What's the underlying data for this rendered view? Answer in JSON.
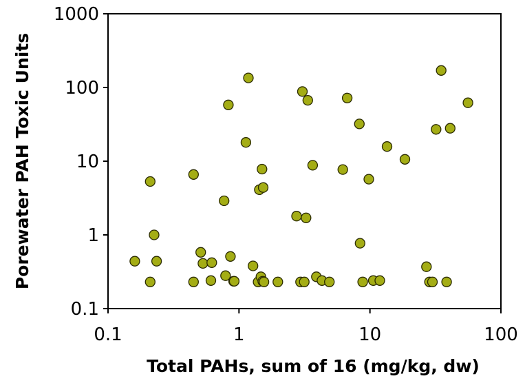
{
  "chart_data": {
    "type": "scatter",
    "xlabel": "Total PAHs, sum of 16 (mg/kg, dw)",
    "ylabel": "Porewater PAH Toxic Units",
    "x_scale": "log",
    "y_scale": "log",
    "xlim": [
      0.1,
      100
    ],
    "ylim": [
      0.1,
      1000
    ],
    "x_ticks": [
      "0.1",
      "1",
      "10",
      "100"
    ],
    "y_ticks": [
      "0.1",
      "1",
      "10",
      "100",
      "1000"
    ],
    "grid": false,
    "legend": "none",
    "marker_color": "#a4ad15",
    "marker_edge": "#2b2b00",
    "points": [
      [
        0.16,
        0.44
      ],
      [
        0.21,
        0.23
      ],
      [
        0.21,
        5.3
      ],
      [
        0.225,
        1.0
      ],
      [
        0.235,
        0.44
      ],
      [
        0.45,
        6.6
      ],
      [
        0.45,
        0.23
      ],
      [
        0.51,
        0.58
      ],
      [
        0.53,
        0.41
      ],
      [
        0.61,
        0.24
      ],
      [
        0.62,
        0.42
      ],
      [
        0.77,
        2.9
      ],
      [
        0.79,
        0.28
      ],
      [
        0.83,
        58
      ],
      [
        0.86,
        0.51
      ],
      [
        0.91,
        0.235
      ],
      [
        0.92,
        0.235
      ],
      [
        1.13,
        18
      ],
      [
        1.18,
        135
      ],
      [
        1.28,
        0.38
      ],
      [
        1.4,
        0.23
      ],
      [
        1.43,
        4.1
      ],
      [
        1.47,
        0.27
      ],
      [
        1.5,
        7.8
      ],
      [
        1.52,
        0.235
      ],
      [
        1.53,
        4.4
      ],
      [
        1.55,
        0.23
      ],
      [
        1.98,
        0.23
      ],
      [
        2.75,
        1.8
      ],
      [
        2.95,
        0.23
      ],
      [
        3.05,
        88
      ],
      [
        3.15,
        0.23
      ],
      [
        3.25,
        1.7
      ],
      [
        3.35,
        67
      ],
      [
        3.65,
        8.8
      ],
      [
        3.9,
        0.27
      ],
      [
        4.3,
        0.24
      ],
      [
        4.9,
        0.23
      ],
      [
        6.2,
        7.7
      ],
      [
        6.7,
        72
      ],
      [
        8.3,
        32
      ],
      [
        8.4,
        0.77
      ],
      [
        8.8,
        0.23
      ],
      [
        9.8,
        5.7
      ],
      [
        10.6,
        0.24
      ],
      [
        11.9,
        0.24
      ],
      [
        13.5,
        15.8
      ],
      [
        18.5,
        10.6
      ],
      [
        27,
        0.37
      ],
      [
        28.5,
        0.23
      ],
      [
        30,
        0.23
      ],
      [
        32,
        27
      ],
      [
        35,
        170
      ],
      [
        38.5,
        0.23
      ],
      [
        41,
        28
      ],
      [
        56,
        62
      ]
    ]
  }
}
